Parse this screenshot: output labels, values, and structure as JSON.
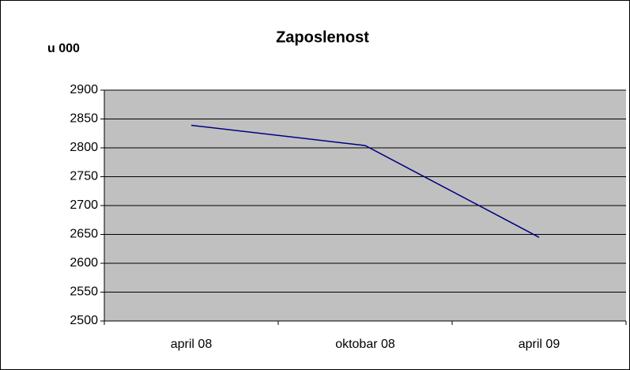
{
  "chart_data": {
    "type": "line",
    "title": "Zaposlenost",
    "y_label": "u 000",
    "categories": [
      "april 08",
      "oktobar 08",
      "april 09"
    ],
    "series": [
      {
        "name": "Zaposlenost",
        "color": "#000080",
        "values": [
          2839,
          2804,
          2645
        ]
      }
    ],
    "ylim": [
      2500,
      2900
    ],
    "yticks": [
      2500,
      2550,
      2600,
      2650,
      2700,
      2750,
      2800,
      2850,
      2900
    ],
    "grid": true,
    "plot_background": "#c0c0c0"
  }
}
